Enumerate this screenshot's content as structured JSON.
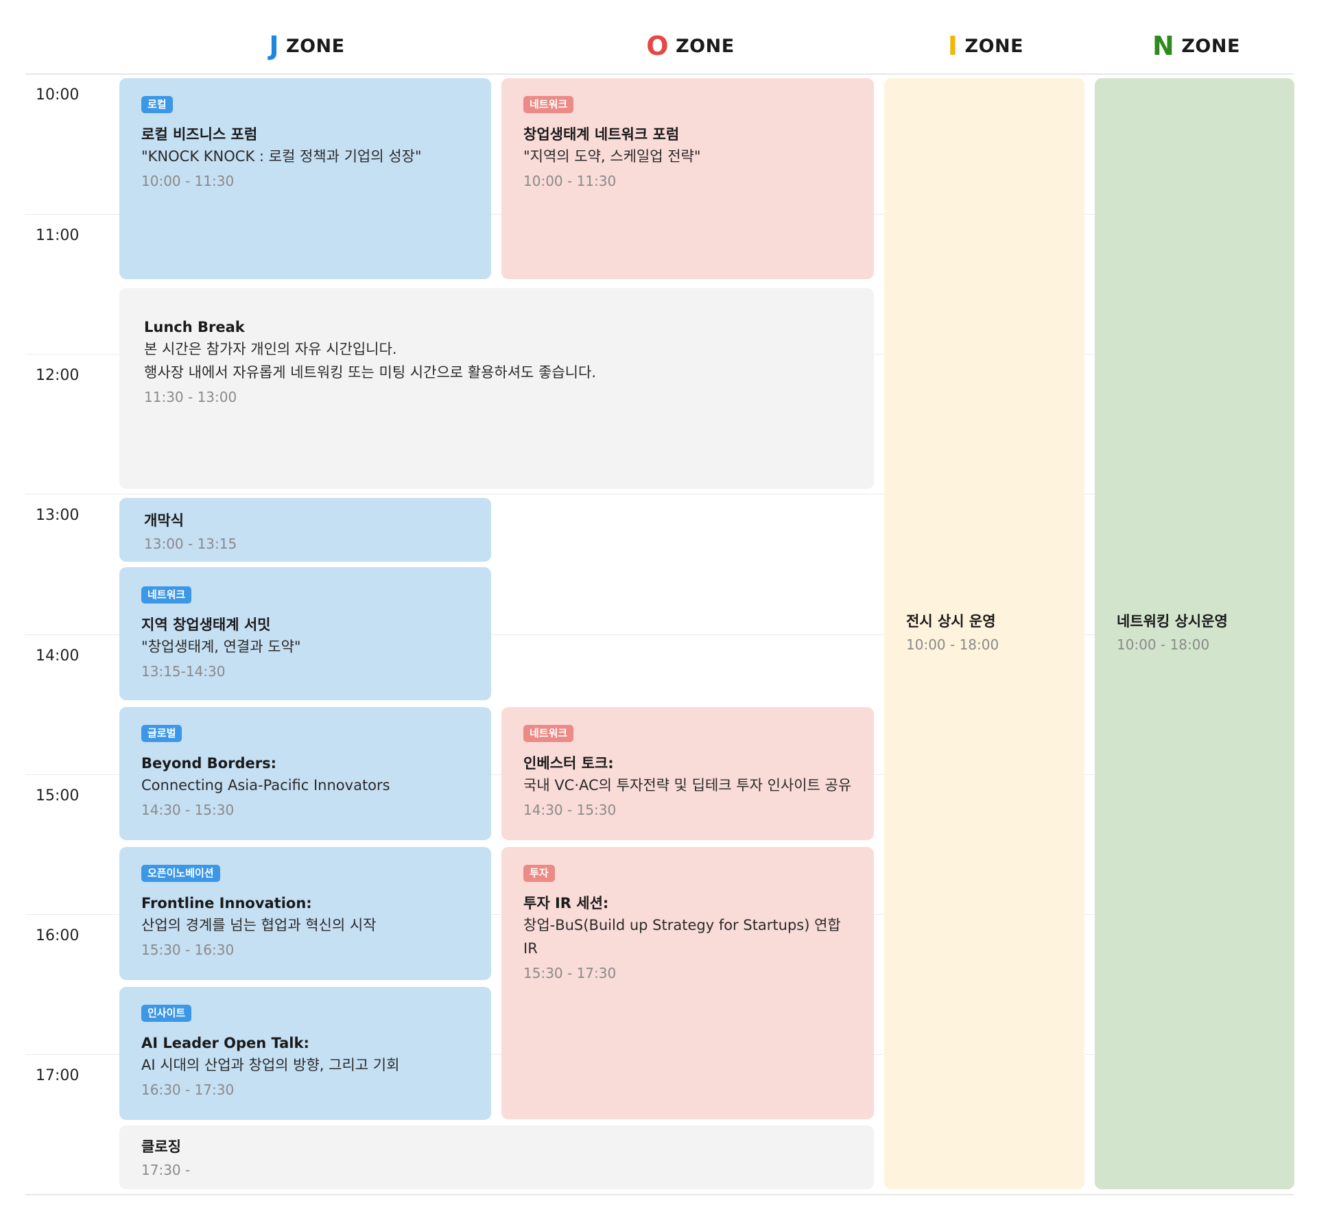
{
  "zones": [
    {
      "letter": "J",
      "word": "ZONE",
      "color": "#1f86e0"
    },
    {
      "letter": "O",
      "word": "ZONE",
      "color": "#e84545"
    },
    {
      "letter": "I",
      "word": "ZONE",
      "color": "#f2b705"
    },
    {
      "letter": "N",
      "word": "ZONE",
      "color": "#2f8a1d"
    }
  ],
  "times": [
    "10:00",
    "11:00",
    "12:00",
    "13:00",
    "14:00",
    "15:00",
    "16:00",
    "17:00"
  ],
  "sessions": {
    "local_forum": {
      "tag": "로컬",
      "title": "로컬 비즈니스 포럼",
      "sub": "\"KNOCK KNOCK : 로컬 정책과 기업의 성장\"",
      "time": "10:00 - 11:30"
    },
    "network_forum": {
      "tag": "네트워크",
      "title": "창업생태계 네트워크 포럼",
      "sub": "\"지역의 도약, 스케일업 전략\"",
      "time": "10:00 - 11:30"
    },
    "lunch": {
      "title": "Lunch Break",
      "line1": "본 시간은 참가자 개인의 자유 시간입니다.",
      "line2": "행사장 내에서 자유롭게 네트워킹 또는 미팅 시간으로 활용하셔도 좋습니다.",
      "time": "11:30 - 13:00"
    },
    "opening": {
      "title": "개막식",
      "time": "13:00 - 13:15"
    },
    "summit": {
      "tag": "네트워크",
      "title": "지역 창업생태계 서밋",
      "sub": "\"창업생태계, 연결과 도약\"",
      "time": "13:15-14:30"
    },
    "beyond": {
      "tag": "글로벌",
      "title": "Beyond Borders:",
      "sub": "Connecting Asia-Pacific Innovators",
      "time": "14:30 - 15:30"
    },
    "investor": {
      "tag": "네트워크",
      "title": "인베스터 토크:",
      "sub": "국내 VC·AC의 투자전략 및 딥테크 투자 인사이트 공유",
      "time": "14:30 - 15:30"
    },
    "frontline": {
      "tag": "오픈이노베이션",
      "title": "Frontline Innovation:",
      "sub": "산업의 경계를 넘는 협업과 혁신의 시작",
      "time": "15:30 - 16:30"
    },
    "ir": {
      "tag": "투자",
      "title": "투자 IR 세션:",
      "sub": "창업-BuS(Build up Strategy for Startups) 연합 IR",
      "time": "15:30 - 17:30"
    },
    "ai": {
      "tag": "인사이트",
      "title": "AI Leader Open Talk:",
      "sub": "AI 시대의 산업과 창업의 방향, 그리고 기회",
      "time": "16:30 - 17:30"
    },
    "closing": {
      "title": "클로징",
      "time": "17:30 -"
    },
    "exhibition": {
      "title": "전시 상시 운영",
      "time": "10:00 - 18:00"
    },
    "networking": {
      "title": "네트워킹 상시운영",
      "time": "10:00 - 18:00"
    }
  }
}
